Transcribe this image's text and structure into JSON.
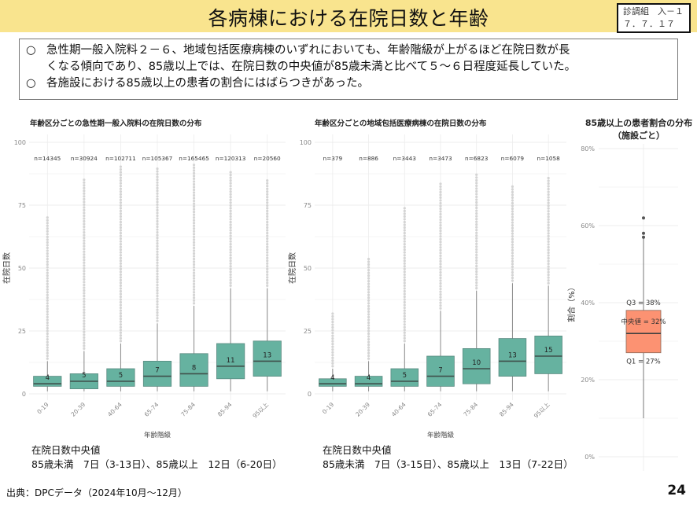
{
  "header": {
    "title": "各病棟における在院日数と年齢",
    "doc_id_line1": "診調組　入－１",
    "doc_id_line2": "７．７．１７"
  },
  "summary": {
    "bullets": [
      {
        "marker": "○",
        "line1": "急性期一般入院料２－６、地域包括医療病棟のいずれにおいても、年齢階級が上がるほど在院日数が長",
        "line2": "くなる傾向であり、85歳以上では、在院日数の中央値が85歳未満と比べて５～６日程度延長していた。"
      },
      {
        "marker": "○",
        "line1": "各施設における85歳以上の患者の割合にはばらつきがあった。"
      }
    ]
  },
  "chart_data": [
    {
      "type": "boxplot",
      "title": "年齢区分ごとの急性期一般入院料の在院日数の分布",
      "xlabel": "年齢階級",
      "ylabel": "在院日数",
      "ylim": [
        0,
        100
      ],
      "yticks": [
        0,
        25,
        50,
        75,
        100
      ],
      "grid": true,
      "categories": [
        "0-19",
        "20-39",
        "40-64",
        "65-74",
        "75-84",
        "85-94",
        "95以上"
      ],
      "n_labels": [
        "n=14345",
        "n=30924",
        "n=102711",
        "n=105367",
        "n=165465",
        "n=120313",
        "n=20560"
      ],
      "median": [
        4,
        5,
        5,
        7,
        8,
        11,
        13
      ],
      "q1": [
        3,
        2,
        3,
        3,
        3,
        6,
        7
      ],
      "q3": [
        7,
        8,
        10,
        13,
        16,
        20,
        21
      ],
      "whisker_low": [
        1,
        1,
        1,
        1,
        1,
        1,
        1
      ],
      "whisker_high": [
        13,
        17,
        20,
        28,
        35,
        42,
        42
      ],
      "outlier_max": [
        71,
        86,
        91,
        90,
        92,
        89,
        85
      ],
      "box_color": "#66b2a0"
    },
    {
      "type": "boxplot",
      "title": "年齢区分ごとの地域包括医療病棟の在院日数の分布",
      "xlabel": "年齢階級",
      "ylabel": "在院日数",
      "ylim": [
        0,
        100
      ],
      "yticks": [
        0,
        25,
        50,
        75,
        100
      ],
      "grid": true,
      "categories": [
        "0-19",
        "20-39",
        "40-64",
        "65-74",
        "75-84",
        "85-94",
        "95以上"
      ],
      "n_labels": [
        "n=379",
        "n=886",
        "n=3443",
        "n=3473",
        "n=6823",
        "n=6079",
        "n=1058"
      ],
      "median": [
        4,
        4,
        5,
        7,
        10,
        13,
        15
      ],
      "q1": [
        3,
        3,
        3,
        3,
        4,
        7,
        8
      ],
      "q3": [
        6,
        7,
        10,
        15,
        18,
        22,
        23
      ],
      "whisker_low": [
        1,
        1,
        1,
        1,
        1,
        1,
        1
      ],
      "whisker_high": [
        10,
        13,
        20,
        33,
        41,
        44,
        43
      ],
      "outlier_max": [
        32,
        54,
        74,
        84,
        88,
        83,
        86
      ],
      "box_color": "#66b2a0"
    },
    {
      "type": "boxplot",
      "title": "85歳以上の患者割合の分布",
      "subtitle": "（施設ごと）",
      "ylabel": "割合（%）",
      "ylim": [
        0,
        80
      ],
      "yticks": [
        "0%",
        "20%",
        "40%",
        "60%",
        "80%"
      ],
      "ytick_values": [
        0,
        20,
        40,
        60,
        80
      ],
      "grid": true,
      "median": 32,
      "q1": 27,
      "q3": 38,
      "whisker_low": 10,
      "whisker_high": 57,
      "outliers": [
        58,
        62
      ],
      "annotations": [
        "Q3 = 38%",
        "中央値 = 32%",
        "Q1 = 27%"
      ],
      "box_color": "#fc9272"
    }
  ],
  "notes": {
    "left_title": "在院日数中央値",
    "left_text": "85歳未満　7日（3-13日）、85歳以上　12日（6-20日）",
    "right_title": "在院日数中央値",
    "right_text": "85歳未満　7日（3-15日）、85歳以上　13日（7-22日）"
  },
  "footer": {
    "source": "出典：DPCデータ（2024年10月～12月）",
    "page_number": "24"
  }
}
